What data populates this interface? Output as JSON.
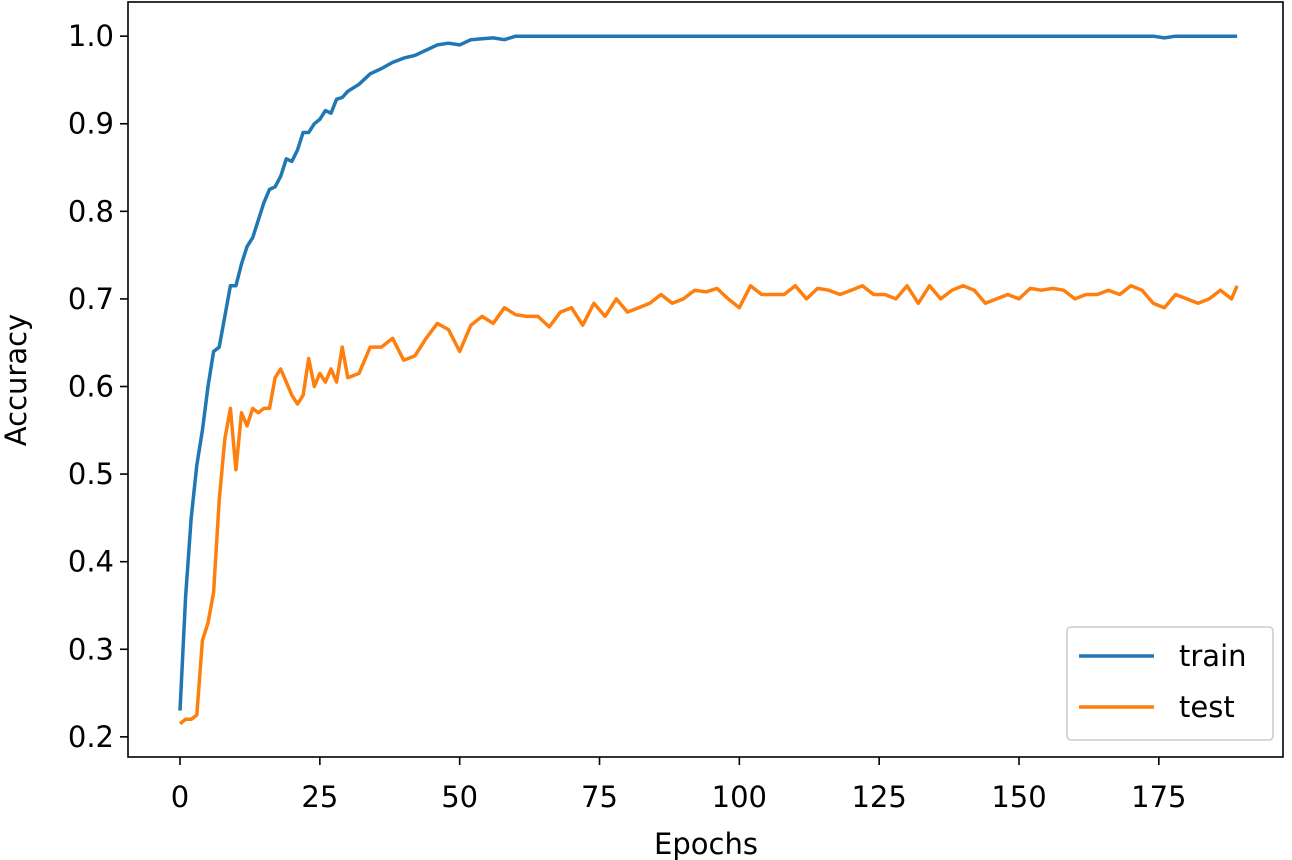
{
  "chart_data": {
    "type": "line",
    "xlabel": "Epochs",
    "ylabel": "Accuracy",
    "x": [
      0,
      1,
      2,
      3,
      4,
      5,
      6,
      7,
      8,
      9,
      10,
      11,
      12,
      13,
      14,
      15,
      16,
      17,
      18,
      19,
      20,
      21,
      22,
      23,
      24,
      25,
      26,
      27,
      28,
      29,
      30,
      32,
      34,
      36,
      38,
      40,
      42,
      44,
      46,
      48,
      50,
      52,
      54,
      56,
      58,
      60,
      62,
      64,
      66,
      68,
      70,
      72,
      74,
      76,
      78,
      80,
      82,
      84,
      86,
      88,
      90,
      92,
      94,
      96,
      98,
      100,
      102,
      104,
      106,
      108,
      110,
      112,
      114,
      116,
      118,
      120,
      122,
      124,
      126,
      128,
      130,
      132,
      134,
      136,
      138,
      140,
      142,
      144,
      146,
      148,
      150,
      152,
      154,
      156,
      158,
      160,
      162,
      164,
      166,
      168,
      170,
      172,
      174,
      176,
      178,
      180,
      182,
      184,
      186,
      188,
      189
    ],
    "series": [
      {
        "name": "train",
        "color": "#1f77b4",
        "values": [
          0.23,
          0.36,
          0.45,
          0.51,
          0.55,
          0.6,
          0.64,
          0.645,
          0.68,
          0.715,
          0.715,
          0.74,
          0.76,
          0.77,
          0.79,
          0.81,
          0.825,
          0.828,
          0.84,
          0.86,
          0.857,
          0.87,
          0.89,
          0.89,
          0.9,
          0.905,
          0.915,
          0.912,
          0.928,
          0.93,
          0.937,
          0.945,
          0.957,
          0.963,
          0.97,
          0.975,
          0.978,
          0.984,
          0.99,
          0.992,
          0.99,
          0.996,
          0.997,
          0.998,
          0.996,
          1.0,
          1.0,
          1.0,
          1.0,
          1.0,
          1.0,
          1.0,
          1.0,
          1.0,
          1.0,
          1.0,
          1.0,
          1.0,
          1.0,
          1.0,
          1.0,
          1.0,
          1.0,
          1.0,
          1.0,
          1.0,
          1.0,
          1.0,
          1.0,
          1.0,
          1.0,
          1.0,
          1.0,
          1.0,
          1.0,
          1.0,
          1.0,
          1.0,
          1.0,
          1.0,
          1.0,
          1.0,
          1.0,
          1.0,
          1.0,
          1.0,
          1.0,
          1.0,
          1.0,
          1.0,
          1.0,
          1.0,
          1.0,
          1.0,
          1.0,
          1.0,
          1.0,
          1.0,
          1.0,
          1.0,
          1.0,
          1.0,
          1.0,
          0.998,
          1.0,
          1.0,
          1.0,
          1.0,
          1.0,
          1.0,
          1.0
        ]
      },
      {
        "name": "test",
        "color": "#ff7f0e",
        "values": [
          0.215,
          0.22,
          0.22,
          0.225,
          0.31,
          0.33,
          0.365,
          0.47,
          0.54,
          0.575,
          0.505,
          0.57,
          0.555,
          0.575,
          0.57,
          0.575,
          0.575,
          0.61,
          0.62,
          0.605,
          0.59,
          0.58,
          0.59,
          0.632,
          0.6,
          0.615,
          0.605,
          0.62,
          0.605,
          0.645,
          0.61,
          0.615,
          0.645,
          0.645,
          0.655,
          0.63,
          0.635,
          0.655,
          0.672,
          0.665,
          0.64,
          0.67,
          0.68,
          0.672,
          0.69,
          0.682,
          0.68,
          0.68,
          0.668,
          0.685,
          0.69,
          0.67,
          0.695,
          0.68,
          0.7,
          0.685,
          0.69,
          0.695,
          0.705,
          0.695,
          0.7,
          0.71,
          0.708,
          0.712,
          0.7,
          0.69,
          0.715,
          0.705,
          0.705,
          0.705,
          0.715,
          0.7,
          0.712,
          0.71,
          0.705,
          0.71,
          0.715,
          0.705,
          0.705,
          0.7,
          0.715,
          0.695,
          0.715,
          0.7,
          0.71,
          0.715,
          0.71,
          0.695,
          0.7,
          0.705,
          0.7,
          0.712,
          0.71,
          0.712,
          0.71,
          0.7,
          0.705,
          0.705,
          0.71,
          0.705,
          0.715,
          0.71,
          0.695,
          0.69,
          0.705,
          0.7,
          0.695,
          0.7,
          0.71,
          0.7,
          0.715
        ]
      }
    ],
    "xlim": [
      -9.3,
      197.2
    ],
    "ylim": [
      0.177,
      1.039
    ],
    "xticks": [
      0,
      25,
      50,
      75,
      100,
      125,
      150,
      175
    ],
    "yticks": [
      0.2,
      0.3,
      0.4,
      0.5,
      0.6,
      0.7,
      0.8,
      0.9,
      {
        "value": 1,
        "label": "1.0"
      }
    ],
    "legend": "lower right"
  }
}
